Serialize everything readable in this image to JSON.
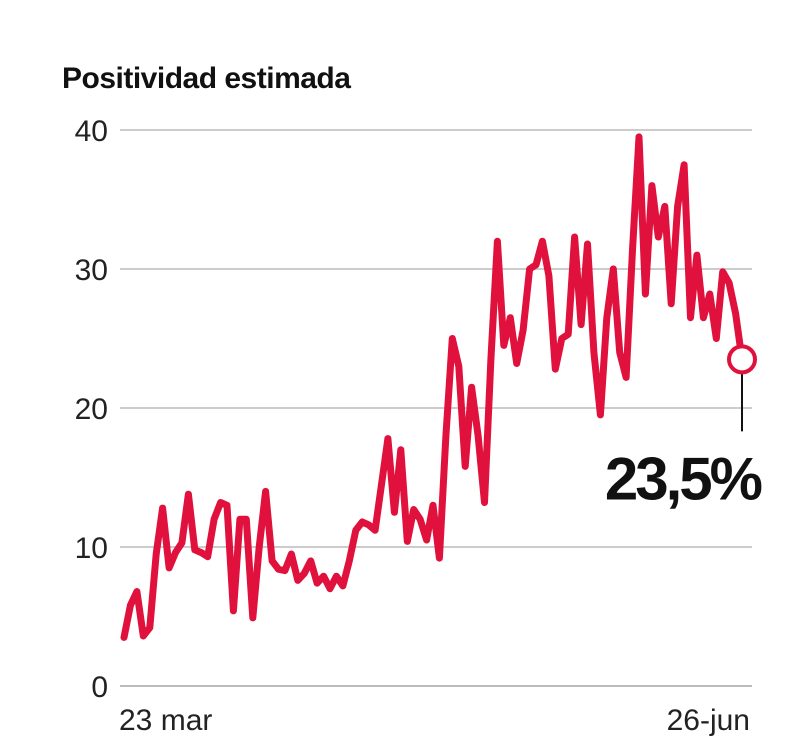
{
  "chart_data": {
    "type": "line",
    "title": "Positividad estimada",
    "xlabel": "",
    "ylabel": "",
    "ylim": [
      0,
      40
    ],
    "yticks": [
      0,
      10,
      20,
      30,
      40
    ],
    "x_start_label": "23 mar",
    "x_end_label": "26-jun",
    "series": [
      {
        "name": "Positividad estimada",
        "color": "#e0113c",
        "values": [
          3.5,
          5.8,
          6.8,
          3.6,
          4.2,
          9.5,
          12.8,
          8.5,
          9.6,
          10.3,
          13.8,
          9.8,
          9.6,
          9.3,
          12.0,
          13.2,
          13.0,
          5.4,
          12.0,
          12.0,
          4.9,
          10.0,
          14.0,
          9.0,
          8.4,
          8.3,
          9.5,
          7.6,
          8.1,
          9.0,
          7.4,
          7.9,
          7.0,
          7.9,
          7.2,
          9.0,
          11.2,
          11.8,
          11.6,
          11.2,
          14.5,
          17.8,
          12.5,
          17.0,
          10.4,
          12.7,
          12.0,
          10.5,
          13.0,
          9.2,
          18.0,
          25.0,
          23.0,
          15.8,
          21.5,
          18.0,
          13.2,
          23.5,
          32.0,
          24.5,
          26.5,
          23.2,
          25.6,
          30.0,
          30.3,
          32.0,
          29.5,
          22.8,
          25.0,
          25.3,
          32.3,
          26.0,
          31.8,
          24.0,
          19.5,
          26.5,
          30.0,
          24.0,
          22.2,
          31.5,
          39.5,
          28.2,
          36.0,
          32.3,
          34.5,
          27.5,
          34.5,
          37.5,
          26.5,
          31.0,
          26.5,
          28.2,
          25.0,
          29.8,
          29.0,
          26.8,
          23.5
        ]
      }
    ],
    "annotation": {
      "label": "23,5%",
      "value": 23.5,
      "at": "last point"
    }
  }
}
